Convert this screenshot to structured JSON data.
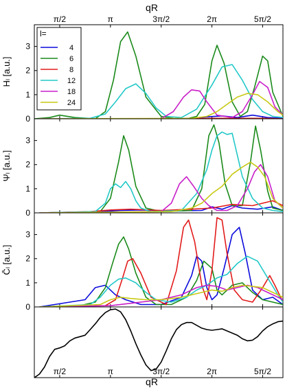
{
  "colors": {
    "4": "#0a0adc",
    "6": "#1a8a1a",
    "8": "#e21a1a",
    "12": "#22c8c8",
    "18": "#c81ec8",
    "24": "#c8c814",
    "profile": "#000000"
  },
  "chart_data": {
    "type": "line",
    "xaxis": {
      "label_top": "qR",
      "label_bottom": "qR",
      "range_pi": [
        0.25,
        2.7
      ],
      "tick_labels": [
        "π/2",
        "π",
        "3π/2",
        "2π",
        "5π/2"
      ],
      "tick_values_pi": [
        0.5,
        1.0,
        1.5,
        2.0,
        2.5
      ]
    },
    "legend": {
      "title": "l=",
      "entries": [
        "4",
        "6",
        "8",
        "12",
        "18",
        "24"
      ],
      "position": "top-left"
    },
    "panels": [
      {
        "ylabel": "Hₗ [a.u.]",
        "ylim": [
          0,
          3.9
        ],
        "yticks": [
          "0",
          "1",
          "2",
          "3"
        ],
        "series": [
          {
            "name": "4",
            "x": [
              0.3,
              0.8,
              1.2,
              1.6,
              1.8,
              1.95,
              2.1,
              2.25,
              2.4,
              2.55,
              2.7
            ],
            "y": [
              0,
              0,
              0,
              0,
              0.02,
              0.08,
              0.12,
              0.05,
              0.15,
              0.05,
              0.02
            ]
          },
          {
            "name": "6",
            "x": [
              0.25,
              0.4,
              0.5,
              0.65,
              0.85,
              0.95,
              1.03,
              1.1,
              1.17,
              1.25,
              1.35,
              1.5,
              1.65,
              1.75,
              1.85,
              1.93,
              2.0,
              2.05,
              2.12,
              2.2,
              2.28,
              2.35,
              2.42,
              2.5,
              2.55,
              2.6,
              2.7
            ],
            "y": [
              0,
              0.05,
              0.15,
              0.05,
              0,
              0.3,
              1.6,
              3.2,
              3.6,
              2.6,
              0.9,
              0.1,
              0,
              0,
              0.1,
              0.6,
              2.4,
              3.05,
              2.3,
              0.7,
              0.1,
              0.3,
              1.3,
              2.6,
              2.4,
              1.1,
              0.1
            ]
          },
          {
            "name": "8",
            "x": [
              0.3,
              1.0,
              1.5,
              2.0,
              2.5,
              2.7
            ],
            "y": [
              0,
              0,
              0,
              0.02,
              0.02,
              0
            ]
          },
          {
            "name": "12",
            "x": [
              0.3,
              0.8,
              0.95,
              1.05,
              1.15,
              1.25,
              1.35,
              1.45,
              1.55,
              1.7,
              1.85,
              2.0,
              2.1,
              2.2,
              2.3,
              2.4,
              2.5,
              2.6,
              2.7
            ],
            "y": [
              0,
              0.02,
              0.2,
              0.7,
              1.25,
              1.45,
              1.05,
              0.45,
              0.1,
              0.05,
              0.4,
              1.4,
              2.15,
              2.25,
              1.6,
              0.8,
              0.3,
              0.1,
              0.05
            ]
          },
          {
            "name": "18",
            "x": [
              0.3,
              1.5,
              1.62,
              1.72,
              1.8,
              1.88,
              1.95,
              2.05,
              2.2,
              2.3,
              2.4,
              2.47,
              2.55,
              2.62,
              2.7
            ],
            "y": [
              0,
              0,
              0.3,
              0.9,
              1.2,
              1.15,
              0.7,
              0.15,
              0.05,
              0.3,
              1.0,
              1.55,
              1.3,
              0.5,
              0.15
            ]
          },
          {
            "name": "24",
            "x": [
              0.3,
              1.8,
              1.95,
              2.05,
              2.15,
              2.25,
              2.35,
              2.45,
              2.55,
              2.65,
              2.7
            ],
            "y": [
              0,
              0.02,
              0.1,
              0.3,
              0.6,
              0.9,
              1.05,
              1.0,
              0.7,
              0.3,
              0.15
            ]
          }
        ]
      },
      {
        "ylabel": "Ψₗ [a.u.]",
        "ylim": [
          0,
          3.9
        ],
        "yticks": [
          "0",
          "1",
          "2",
          "3"
        ],
        "series": [
          {
            "name": "4",
            "x": [
              0.3,
              0.9,
              1.1,
              1.3,
              1.6,
              1.9,
              2.0,
              2.1,
              2.2,
              2.3,
              2.45,
              2.6,
              2.7
            ],
            "y": [
              0,
              0.05,
              0.1,
              0.12,
              0.08,
              0.1,
              0.25,
              0.15,
              0.3,
              0.2,
              0.15,
              0.25,
              0.1
            ]
          },
          {
            "name": "6",
            "x": [
              0.3,
              0.7,
              0.9,
              1.0,
              1.08,
              1.13,
              1.18,
              1.25,
              1.35,
              1.5,
              1.8,
              1.9,
              1.97,
              2.02,
              2.07,
              2.13,
              2.2,
              2.3,
              2.38,
              2.43,
              2.48,
              2.55,
              2.6,
              2.7
            ],
            "y": [
              0,
              0,
              0.05,
              0.6,
              2.1,
              3.2,
              2.6,
              1.1,
              0.2,
              0.05,
              0.1,
              1.0,
              3.2,
              3.65,
              2.9,
              1.2,
              0.3,
              0.3,
              2.1,
              3.6,
              2.6,
              0.9,
              0.2,
              0.1
            ]
          },
          {
            "name": "8",
            "x": [
              0.3,
              0.8,
              1.0,
              1.2,
              1.5,
              1.8,
              2.0,
              2.2,
              2.4,
              2.6,
              2.7
            ],
            "y": [
              0,
              0.05,
              0.12,
              0.15,
              0.1,
              0.15,
              0.2,
              0.35,
              0.3,
              0.5,
              0.3
            ]
          },
          {
            "name": "12",
            "x": [
              0.3,
              0.85,
              0.95,
              1.0,
              1.05,
              1.1,
              1.15,
              1.2,
              1.25,
              1.3,
              1.4,
              1.7,
              1.85,
              1.95,
              2.0,
              2.05,
              2.1,
              2.15,
              2.2,
              2.25,
              2.3,
              2.4,
              2.5,
              2.6,
              2.7
            ],
            "y": [
              0,
              0.05,
              0.4,
              1.0,
              1.2,
              1.05,
              1.3,
              1.0,
              0.5,
              0.2,
              0.05,
              0.1,
              0.8,
              1.8,
              2.6,
              3.2,
              3.35,
              3.25,
              3.3,
              2.4,
              1.5,
              0.6,
              0.2,
              0.1,
              0.05
            ]
          },
          {
            "name": "18",
            "x": [
              0.3,
              1.5,
              1.6,
              1.68,
              1.75,
              1.82,
              1.9,
              1.97,
              2.05,
              2.15,
              2.25,
              2.35,
              2.42,
              2.48,
              2.55,
              2.62,
              2.7
            ],
            "y": [
              0,
              0.05,
              0.4,
              1.2,
              1.5,
              1.1,
              0.6,
              0.3,
              0.1,
              0.1,
              0.3,
              1.0,
              1.7,
              2.0,
              1.5,
              0.5,
              0.2
            ]
          },
          {
            "name": "24",
            "x": [
              0.3,
              1.6,
              1.8,
              1.9,
              2.0,
              2.1,
              2.2,
              2.3,
              2.38,
              2.45,
              2.52,
              2.6,
              2.7
            ],
            "y": [
              0,
              0.05,
              0.2,
              0.4,
              0.8,
              1.1,
              1.6,
              1.9,
              2.1,
              1.9,
              1.5,
              0.6,
              0.2
            ]
          }
        ]
      },
      {
        "ylabel": "C̄ₗ [a.u.]",
        "ylim": [
          0,
          3.9
        ],
        "yticks": [
          "0",
          "1",
          "2",
          "3"
        ],
        "series": [
          {
            "name": "4",
            "x": [
              0.3,
              0.6,
              0.75,
              0.85,
              0.95,
              1.05,
              1.15,
              1.3,
              1.5,
              1.7,
              1.8,
              1.85,
              1.9,
              1.95,
              2.0,
              2.05,
              2.12,
              2.2,
              2.27,
              2.33,
              2.4,
              2.5,
              2.6,
              2.7
            ],
            "y": [
              0,
              0.2,
              0.3,
              0.8,
              0.9,
              0.5,
              0.3,
              0.1,
              0.1,
              0.4,
              1.3,
              2.1,
              1.9,
              0.8,
              0.3,
              0.5,
              1.6,
              3.0,
              3.3,
              2.2,
              0.7,
              0.3,
              0.4,
              0.1
            ]
          },
          {
            "name": "6",
            "x": [
              0.3,
              0.7,
              0.85,
              0.95,
              1.02,
              1.08,
              1.13,
              1.18,
              1.25,
              1.35,
              1.45,
              1.6,
              1.75,
              1.85,
              1.92,
              2.0,
              2.05,
              2.1,
              2.2,
              2.3,
              2.4,
              2.5,
              2.6,
              2.7
            ],
            "y": [
              0,
              0.05,
              0.2,
              0.8,
              1.8,
              2.6,
              2.9,
              2.4,
              1.4,
              0.4,
              0.1,
              0.1,
              0.4,
              1.1,
              1.9,
              1.6,
              0.7,
              0.5,
              0.9,
              1.0,
              0.6,
              0.3,
              0.2,
              0.1
            ]
          },
          {
            "name": "8",
            "x": [
              0.3,
              0.95,
              1.05,
              1.12,
              1.17,
              1.22,
              1.3,
              1.4,
              1.55,
              1.65,
              1.72,
              1.77,
              1.83,
              1.9,
              1.95,
              2.0,
              2.05,
              2.1,
              2.15,
              2.22,
              2.3,
              2.4,
              2.5,
              2.57,
              2.62,
              2.7
            ],
            "y": [
              0,
              0.05,
              0.3,
              1.2,
              1.9,
              2.0,
              1.4,
              0.4,
              0.1,
              1.5,
              3.3,
              3.6,
              2.7,
              0.9,
              0.3,
              1.5,
              3.7,
              3.6,
              2.2,
              0.7,
              0.3,
              0.2,
              0.8,
              1.3,
              0.9,
              0.2
            ]
          },
          {
            "name": "12",
            "x": [
              0.3,
              0.8,
              0.9,
              1.0,
              1.08,
              1.15,
              1.25,
              1.35,
              1.45,
              1.6,
              1.75,
              1.85,
              1.95,
              2.05,
              2.15,
              2.25,
              2.35,
              2.45,
              2.55,
              2.65,
              2.7
            ],
            "y": [
              0,
              0.1,
              0.4,
              0.9,
              1.15,
              1.2,
              1.0,
              0.6,
              0.3,
              0.2,
              0.4,
              0.7,
              0.9,
              1.2,
              1.35,
              1.8,
              2.1,
              1.9,
              1.2,
              0.5,
              0.2
            ]
          },
          {
            "name": "18",
            "x": [
              0.3,
              1.0,
              1.2,
              1.5,
              1.7,
              1.85,
              1.95,
              2.05,
              2.15,
              2.25,
              2.35,
              2.45,
              2.55,
              2.65,
              2.7
            ],
            "y": [
              0,
              0.05,
              0.15,
              0.3,
              0.5,
              0.8,
              0.9,
              0.85,
              0.7,
              0.8,
              0.9,
              0.8,
              0.6,
              0.4,
              0.3
            ]
          },
          {
            "name": "24",
            "x": [
              0.3,
              0.9,
              1.0,
              1.1,
              1.2,
              1.35,
              1.5,
              1.7,
              1.9,
              2.0,
              2.1,
              2.2,
              2.3,
              2.4,
              2.5,
              2.6,
              2.7
            ],
            "y": [
              0,
              0.1,
              0.3,
              0.4,
              0.35,
              0.3,
              0.3,
              0.4,
              0.6,
              0.7,
              0.65,
              0.8,
              0.9,
              0.85,
              0.8,
              0.6,
              0.4
            ]
          }
        ]
      },
      {
        "ylabel": "",
        "ylim": [
          0,
          1
        ],
        "yticks": [],
        "series": [
          {
            "name": "",
            "x": [
              0.25,
              0.3,
              0.35,
              0.4,
              0.45,
              0.5,
              0.55,
              0.6,
              0.65,
              0.7,
              0.75,
              0.8,
              0.85,
              0.9,
              0.95,
              1.0,
              1.05,
              1.1,
              1.15,
              1.2,
              1.25,
              1.3,
              1.35,
              1.4,
              1.45,
              1.5,
              1.55,
              1.6,
              1.65,
              1.7,
              1.75,
              1.8,
              1.85,
              1.9,
              1.95,
              2.0,
              2.05,
              2.1,
              2.15,
              2.2,
              2.25,
              2.3,
              2.35,
              2.4,
              2.45,
              2.5,
              2.55,
              2.6,
              2.65,
              2.7
            ],
            "y": [
              0.0,
              0.05,
              0.15,
              0.3,
              0.4,
              0.42,
              0.45,
              0.52,
              0.56,
              0.58,
              0.6,
              0.68,
              0.76,
              0.85,
              0.92,
              0.96,
              0.97,
              0.93,
              0.82,
              0.66,
              0.48,
              0.32,
              0.18,
              0.1,
              0.12,
              0.22,
              0.38,
              0.55,
              0.68,
              0.75,
              0.78,
              0.78,
              0.74,
              0.7,
              0.68,
              0.67,
              0.68,
              0.69,
              0.66,
              0.63,
              0.6,
              0.55,
              0.52,
              0.53,
              0.58,
              0.66,
              0.72,
              0.76,
              0.79,
              0.8
            ]
          }
        ]
      }
    ]
  }
}
